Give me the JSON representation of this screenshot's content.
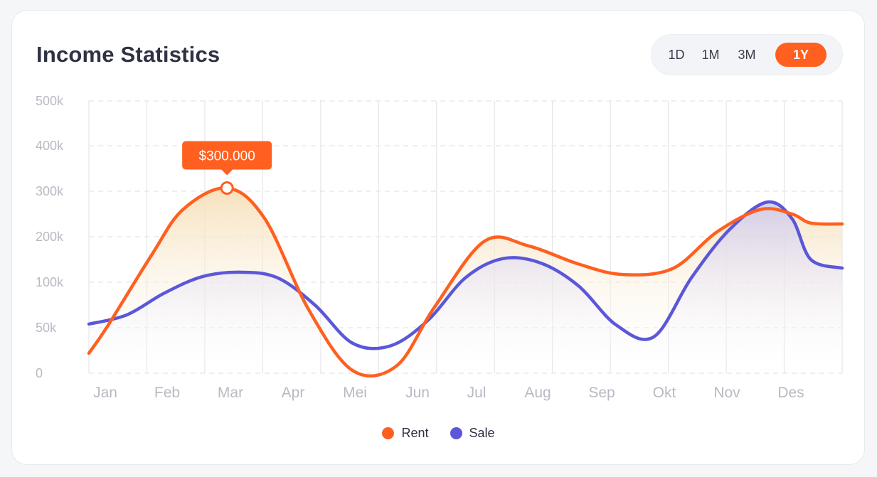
{
  "header": {
    "title": "Income Statistics"
  },
  "range_selector": {
    "options": [
      "1D",
      "1M",
      "3M",
      "1Y"
    ],
    "active": "1Y"
  },
  "tooltip": {
    "text": "$300.000",
    "series": "Rent",
    "x": 2.2
  },
  "colors": {
    "rent": "#ff5f1f",
    "sale": "#5b57d8",
    "rent_fill": "#f6dfb8",
    "sale_fill": "#cdc9ee",
    "grid": "#e4e5ea",
    "tick": "#b8bac3"
  },
  "legend": [
    {
      "label": "Rent",
      "color": "#ff5f1f"
    },
    {
      "label": "Sale",
      "color": "#5b57d8"
    }
  ],
  "chart_data": {
    "type": "area",
    "title": "Income Statistics",
    "categories": [
      "Jan",
      "Feb",
      "Mar",
      "Apr",
      "Mei",
      "Jun",
      "Jul",
      "Aug",
      "Sep",
      "Okt",
      "Nov",
      "Des"
    ],
    "y_ticks": [
      "0",
      "50k",
      "100k",
      "200k",
      "300k",
      "400k",
      "500k"
    ],
    "y_tick_values": [
      0,
      50000,
      100000,
      200000,
      300000,
      400000,
      500000
    ],
    "ylim": [
      0,
      500000
    ],
    "grid": true,
    "legend_position": "bottom-center",
    "series": [
      {
        "name": "Rent",
        "x": [
          0.0,
          0.3,
          1.0,
          1.5,
          2.2,
          2.8,
          3.5,
          4.2,
          4.9,
          5.5,
          6.3,
          7.0,
          7.8,
          8.5,
          9.3,
          10.0,
          10.7,
          11.2,
          11.5,
          12.0
        ],
        "values": [
          22000,
          52000,
          160000,
          260000,
          307000,
          240000,
          70000,
          3000,
          8000,
          72000,
          190000,
          180000,
          140000,
          117000,
          130000,
          210000,
          260000,
          250000,
          230000,
          228000
        ]
      },
      {
        "name": "Sale",
        "x": [
          0.0,
          0.6,
          1.2,
          1.8,
          2.4,
          3.0,
          3.6,
          4.2,
          4.8,
          5.4,
          6.0,
          6.6,
          7.2,
          7.8,
          8.4,
          9.0,
          9.6,
          10.2,
          10.8,
          11.2,
          11.5,
          12.0
        ],
        "values": [
          54000,
          64000,
          88000,
          112000,
          122000,
          110000,
          75000,
          33000,
          30000,
          58000,
          110000,
          152000,
          142000,
          96000,
          53000,
          40000,
          110000,
          215000,
          276000,
          240000,
          150000,
          131000
        ]
      }
    ]
  }
}
